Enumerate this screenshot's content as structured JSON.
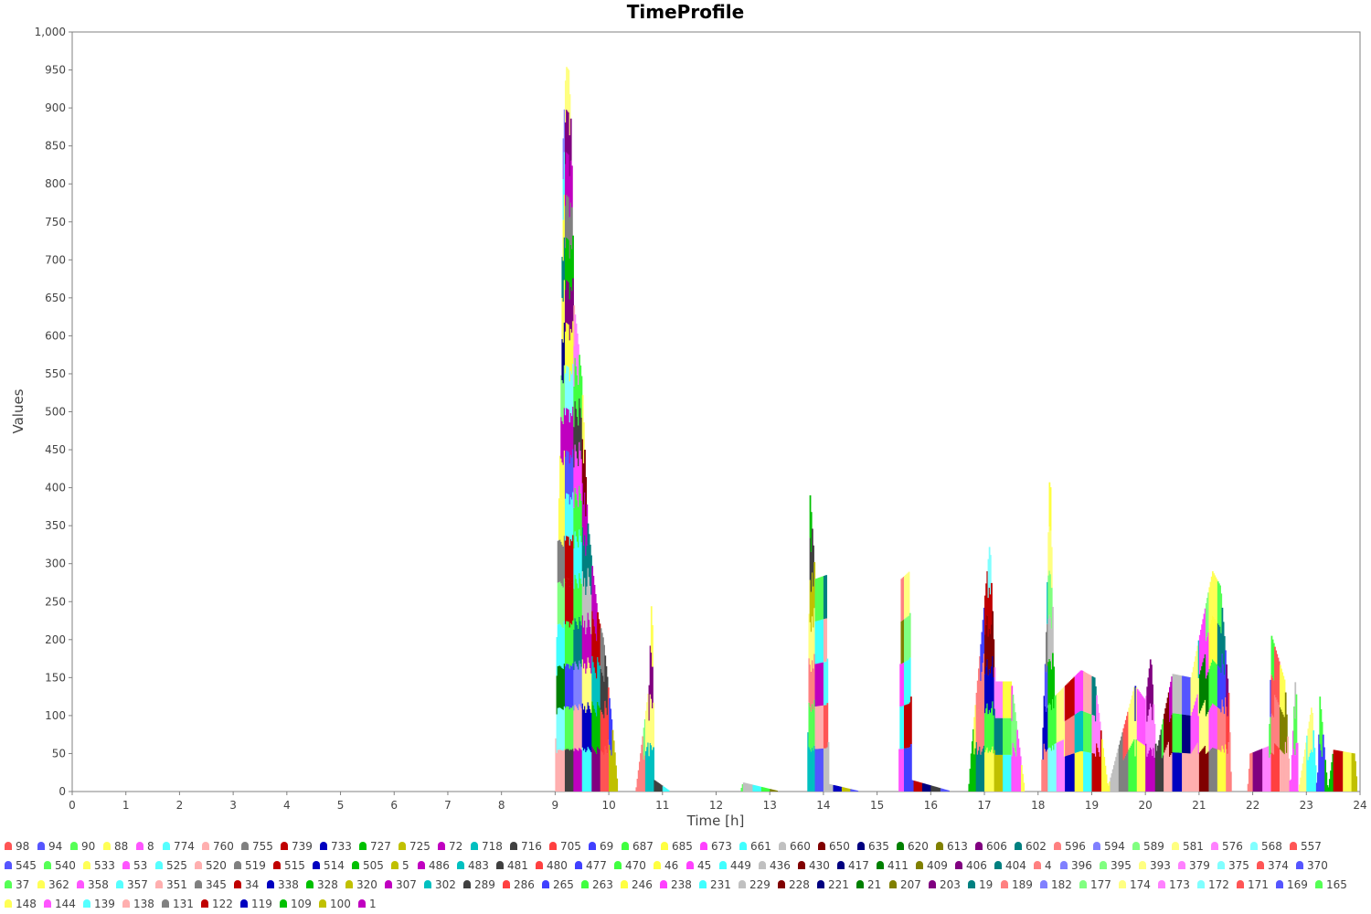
{
  "chart_data": {
    "type": "area",
    "stacked": true,
    "title": "TimeProfile",
    "xlabel": "Time [h]",
    "ylabel": "Values",
    "xlim": [
      0,
      24
    ],
    "ylim": [
      0,
      1000
    ],
    "x_ticks": [
      "0",
      "1",
      "2",
      "3",
      "4",
      "5",
      "6",
      "7",
      "8",
      "9",
      "10",
      "11",
      "12",
      "13",
      "14",
      "15",
      "16",
      "17",
      "18",
      "19",
      "20",
      "21",
      "22",
      "23",
      "24"
    ],
    "y_ticks": [
      "0",
      "50",
      "100",
      "150",
      "200",
      "250",
      "300",
      "350",
      "400",
      "450",
      "500",
      "550",
      "600",
      "650",
      "700",
      "750",
      "800",
      "850",
      "900",
      "950",
      "1,000"
    ],
    "grid": false,
    "legend_position": "bottom",
    "palette": [
      "#ff5555",
      "#5555ff",
      "#55ff55",
      "#ffff55",
      "#ff55ff",
      "#55ffff",
      "#ffafaf",
      "#808080",
      "#c00000",
      "#0000c0",
      "#00c000",
      "#c0c000",
      "#c000c0",
      "#00c0c0",
      "#404040",
      "#ff4040",
      "#4040ff",
      "#40ff40",
      "#ffff40",
      "#ff40ff",
      "#40ffff",
      "#c0c0c0",
      "#800000",
      "#000080",
      "#008000",
      "#808000",
      "#800080",
      "#008080",
      "#ff8080",
      "#8080ff",
      "#80ff80",
      "#ffff80",
      "#ff80ff",
      "#80ffff"
    ],
    "legend": [
      "98",
      "94",
      "90",
      "88",
      "8",
      "774",
      "760",
      "755",
      "739",
      "733",
      "727",
      "725",
      "72",
      "718",
      "716",
      "705",
      "69",
      "687",
      "685",
      "673",
      "661",
      "660",
      "650",
      "635",
      "620",
      "613",
      "606",
      "602",
      "596",
      "594",
      "589",
      "581",
      "576",
      "568",
      "557",
      "545",
      "540",
      "533",
      "53",
      "525",
      "520",
      "519",
      "515",
      "514",
      "505",
      "5",
      "486",
      "483",
      "481",
      "480",
      "477",
      "470",
      "46",
      "45",
      "449",
      "436",
      "430",
      "417",
      "411",
      "409",
      "406",
      "404",
      "4",
      "396",
      "395",
      "393",
      "379",
      "375",
      "374",
      "370",
      "37",
      "362",
      "358",
      "357",
      "351",
      "345",
      "34",
      "338",
      "328",
      "320",
      "307",
      "302",
      "289",
      "286",
      "265",
      "263",
      "246",
      "238",
      "231",
      "229",
      "228",
      "221",
      "21",
      "207",
      "203",
      "19",
      "189",
      "182",
      "177",
      "174",
      "173",
      "172",
      "171",
      "169",
      "165",
      "148",
      "144",
      "139",
      "138",
      "131",
      "122",
      "119",
      "109",
      "100",
      "1"
    ],
    "series_profiles": {
      "total_envelope": [
        [
          0,
          0
        ],
        [
          9.0,
          0
        ],
        [
          9.02,
          140
        ],
        [
          9.05,
          330
        ],
        [
          9.1,
          470
        ],
        [
          9.15,
          860
        ],
        [
          9.2,
          955
        ],
        [
          9.25,
          950
        ],
        [
          9.3,
          870
        ],
        [
          9.35,
          640
        ],
        [
          9.4,
          610
        ],
        [
          9.5,
          540
        ],
        [
          9.6,
          360
        ],
        [
          9.7,
          290
        ],
        [
          9.8,
          230
        ],
        [
          9.9,
          200
        ],
        [
          10.0,
          130
        ],
        [
          10.1,
          60
        ],
        [
          10.17,
          0
        ],
        [
          10.5,
          0
        ],
        [
          10.75,
          140
        ],
        [
          10.8,
          270
        ],
        [
          10.85,
          15
        ],
        [
          11.15,
          0
        ],
        [
          12.45,
          0
        ],
        [
          12.5,
          12
        ],
        [
          13.2,
          0
        ],
        [
          13.7,
          0
        ],
        [
          13.75,
          390
        ],
        [
          13.85,
          280
        ],
        [
          14.05,
          285
        ],
        [
          14.1,
          10
        ],
        [
          14.7,
          0
        ],
        [
          15.4,
          0
        ],
        [
          15.45,
          280
        ],
        [
          15.6,
          290
        ],
        [
          15.65,
          15
        ],
        [
          16.4,
          0
        ],
        [
          16.7,
          0
        ],
        [
          16.75,
          50
        ],
        [
          17.1,
          330
        ],
        [
          17.2,
          145
        ],
        [
          17.5,
          145
        ],
        [
          17.75,
          0
        ],
        [
          18.05,
          0
        ],
        [
          18.15,
          210
        ],
        [
          18.22,
          440
        ],
        [
          18.3,
          125
        ],
        [
          18.8,
          160
        ],
        [
          19.05,
          150
        ],
        [
          19.3,
          5
        ],
        [
          19.8,
          140
        ],
        [
          20.0,
          120
        ],
        [
          20.1,
          180
        ],
        [
          20.2,
          50
        ],
        [
          20.5,
          155
        ],
        [
          20.85,
          150
        ],
        [
          21.25,
          290
        ],
        [
          21.4,
          270
        ],
        [
          21.55,
          130
        ],
        [
          21.6,
          0
        ],
        [
          21.9,
          0
        ],
        [
          21.95,
          50
        ],
        [
          22.3,
          60
        ],
        [
          22.35,
          205
        ],
        [
          22.6,
          145
        ],
        [
          22.7,
          0
        ],
        [
          22.8,
          160
        ],
        [
          22.85,
          0
        ],
        [
          23.1,
          115
        ],
        [
          23.2,
          0
        ],
        [
          23.25,
          125
        ],
        [
          23.4,
          0
        ],
        [
          23.5,
          55
        ],
        [
          23.9,
          50
        ],
        [
          23.95,
          0
        ],
        [
          24,
          0
        ]
      ]
    }
  }
}
